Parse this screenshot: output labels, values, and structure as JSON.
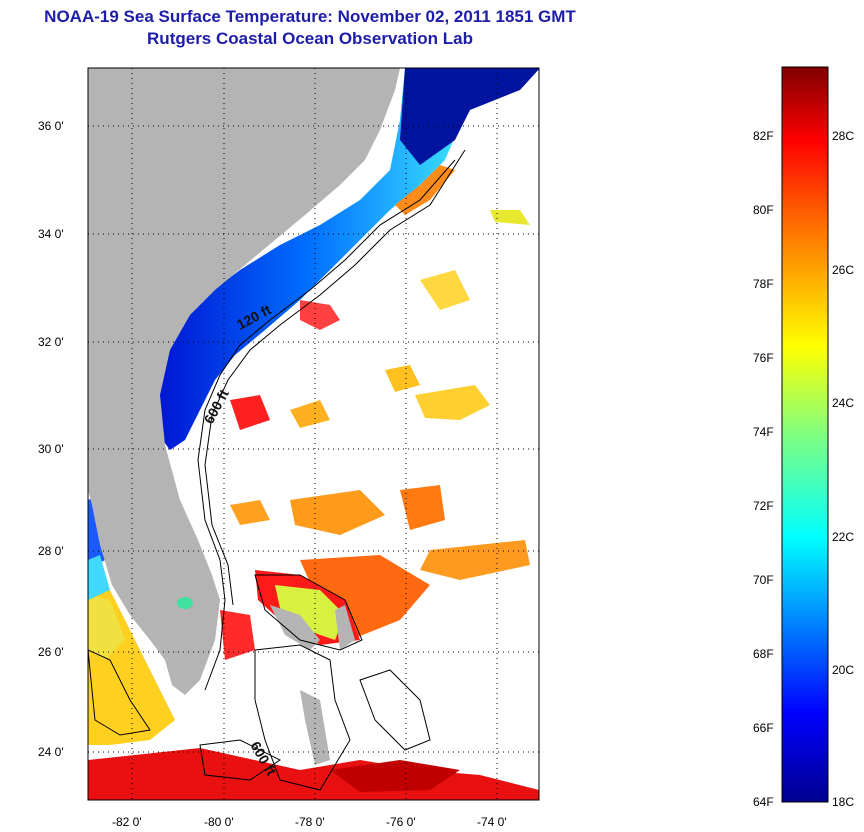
{
  "header": {
    "title_line1": "NOAA-19 Sea Surface Temperature:  November 02, 2011 1851 GMT",
    "title_line2": "Rutgers Coastal Ocean Observation Lab"
  },
  "map": {
    "lon_range": [
      -83,
      -73
    ],
    "lat_range": [
      23,
      37
    ],
    "lat_ticks": [
      {
        "value": 24,
        "label": "24 0'"
      },
      {
        "value": 26,
        "label": "26 0'"
      },
      {
        "value": 28,
        "label": "28 0'"
      },
      {
        "value": 30,
        "label": "30 0'"
      },
      {
        "value": 32,
        "label": "32 0'"
      },
      {
        "value": 34,
        "label": "34 0'"
      },
      {
        "value": 36,
        "label": "36 0'"
      }
    ],
    "lon_ticks": [
      {
        "value": -82,
        "label": "-82 0'"
      },
      {
        "value": -80,
        "label": "-80 0'"
      },
      {
        "value": -78,
        "label": "-78 0'"
      },
      {
        "value": -76,
        "label": "-76 0'"
      },
      {
        "value": -74,
        "label": "-74 0'"
      }
    ],
    "contour_labels": [
      {
        "text": "120 ft",
        "name": "contour-label-120ft"
      },
      {
        "text": "600 ft",
        "name": "contour-label-600ft-north"
      },
      {
        "text": "600 ft",
        "name": "contour-label-600ft-south"
      }
    ],
    "land_color": "#b4b4b4",
    "grid": "dotted"
  },
  "colorbar": {
    "range_c": [
      18,
      29.5
    ],
    "fahrenheit_labels": [
      "82F",
      "80F",
      "78F",
      "76F",
      "74F",
      "72F",
      "70F",
      "68F",
      "66F",
      "64F"
    ],
    "celsius_labels": [
      "28C",
      "26C",
      "24C",
      "22C",
      "20C",
      "18C"
    ],
    "colormap": "jet"
  }
}
